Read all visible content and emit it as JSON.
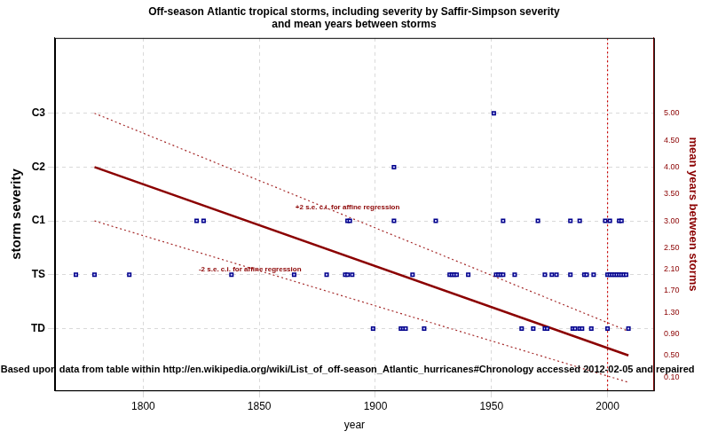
{
  "chart_data": {
    "type": "scatter",
    "title": [
      "Off-season Atlantic tropical storms, including severity by Saffir-Simpson severity",
      "and mean years between storms"
    ],
    "x_label": "year",
    "y_label": "storm severity",
    "y2_label": "mean years between storms",
    "xlim": [
      1762,
      2020
    ],
    "xticks": [
      1800,
      1850,
      1900,
      1950,
      2000
    ],
    "ylim": [
      -0.15,
      6.4
    ],
    "yticks": [
      {
        "value": 1,
        "label": "TD"
      },
      {
        "value": 2,
        "label": "TS"
      },
      {
        "value": 3,
        "label": "C1"
      },
      {
        "value": 4,
        "label": "C2"
      },
      {
        "value": 5,
        "label": "C3"
      }
    ],
    "y2lim": [
      -0.15,
      6.4
    ],
    "y2ticks": [
      {
        "value": 0.1,
        "label": "0.10"
      },
      {
        "value": 0.5,
        "label": "0.50"
      },
      {
        "value": 0.9,
        "label": "0.90"
      },
      {
        "value": 1.3,
        "label": "1.30"
      },
      {
        "value": 1.7,
        "label": "1.70"
      },
      {
        "value": 2.1,
        "label": "2.10"
      },
      {
        "value": 2.5,
        "label": "2.50"
      },
      {
        "value": 3,
        "label": "3.00"
      },
      {
        "value": 3.5,
        "label": "3.50"
      },
      {
        "value": 4,
        "label": "4.00"
      },
      {
        "value": 4.5,
        "label": "4.50"
      },
      {
        "value": 5,
        "label": "5.00"
      }
    ],
    "grid": true,
    "series": [
      {
        "type": "scatter",
        "color": "#00008b",
        "marker": "square",
        "x": [
          1771,
          1779,
          1794,
          1838,
          1865,
          1879,
          1887,
          1888,
          1890,
          1916,
          1932,
          1933,
          1934,
          1935,
          1940,
          1952,
          1953,
          1954,
          1955,
          1960,
          1973,
          1976,
          1978,
          1984,
          1990,
          1991,
          1994,
          2000,
          2001,
          2002,
          2003,
          2004,
          2005,
          2006,
          2007,
          2008,
          1823,
          1826,
          1888,
          1889,
          1908,
          1926,
          1955,
          1970,
          1984,
          1988,
          1999,
          2001,
          2005,
          2006,
          1908,
          1951,
          1899,
          1911,
          1912,
          1913,
          1921,
          1963,
          1968,
          1973,
          1974,
          1985,
          1986,
          1988,
          1989,
          1993,
          2000,
          2009
        ],
        "values": [
          2,
          2,
          2,
          2,
          2,
          2,
          2,
          2,
          2,
          2,
          2,
          2,
          2,
          2,
          2,
          2,
          2,
          2,
          2,
          2,
          2,
          2,
          2,
          2,
          2,
          2,
          2,
          2,
          2,
          2,
          2,
          2,
          2,
          2,
          2,
          2,
          3,
          3,
          3,
          3,
          3,
          3,
          3,
          3,
          3,
          3,
          3,
          3,
          3,
          3,
          4,
          5,
          1,
          1,
          1,
          1,
          1,
          1,
          1,
          1,
          1,
          1,
          1,
          1,
          1,
          1,
          1,
          1
        ]
      },
      {
        "type": "line",
        "axis": "y2",
        "color": "#8b0000",
        "line_style": "solid",
        "x": [
          1779,
          2009
        ],
        "values": [
          4.0,
          0.5
        ]
      },
      {
        "type": "line",
        "axis": "y2",
        "color": "#a52a2a",
        "line_style": "dotted",
        "x": [
          1779,
          2009
        ],
        "values": [
          5.0,
          0.95
        ]
      },
      {
        "type": "line",
        "axis": "y2",
        "color": "#a52a2a",
        "line_style": "dotted",
        "x": [
          1779,
          2009
        ],
        "values": [
          3.0,
          0.0
        ]
      },
      {
        "type": "line",
        "color": "#cc0000",
        "line_style": "dotted",
        "x": [
          2000,
          2000
        ],
        "values": [
          -0.15,
          6.4
        ]
      }
    ],
    "annotations": [
      {
        "text": "+2 s.e. c.i. for affine regression",
        "x": 1888,
        "y": 3.25,
        "color": "#8b0000"
      },
      {
        "text": "-2 s.e. c.i. for affine regression",
        "x": 1846,
        "y": 2.1,
        "color": "#8b0000"
      },
      {
        "text": "Based upon data from table within http://en.wikipedia.org/wiki/List_of_off-season_Atlantic_hurricanes#Chronology accessed 2012-02-05 and repaired",
        "x": 1888,
        "y": 0.23,
        "color": "#000000"
      }
    ]
  }
}
